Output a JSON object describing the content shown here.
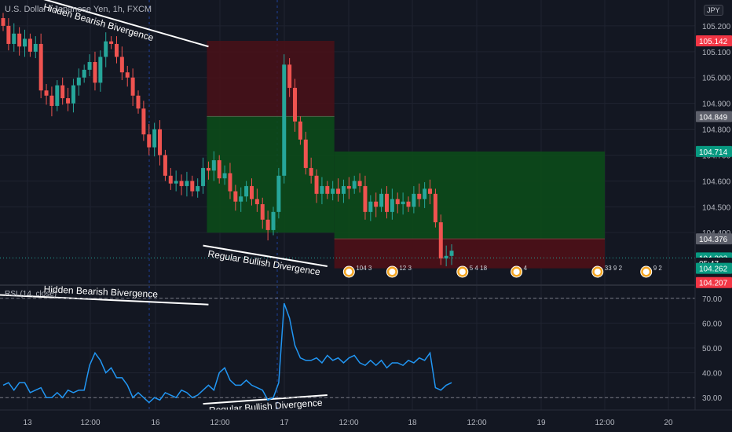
{
  "header": {
    "symbol_title": "U.S. Dollar / Japanese Yen, 1h, FXCM",
    "currency": "JPY",
    "rsi_legend": "RSI (14, close)"
  },
  "colors": {
    "bg": "#131722",
    "grid": "#1f2330",
    "up": "#26a69a",
    "down": "#ef5350",
    "rsi_line": "#2196f3",
    "profit_zone": "#0c4a1a",
    "loss_zone": "#4a1018",
    "line_white": "#ffffff"
  },
  "chart_data": [
    {
      "type": "candlestick",
      "ylim": [
        104.2,
        105.3
      ],
      "y_ticks": [
        105.2,
        105.1,
        105.0,
        104.9,
        104.8,
        104.7,
        104.6,
        104.5,
        104.4
      ],
      "x_ticks": [
        "13",
        "12:00",
        "16",
        "12:00",
        "17",
        "12:00",
        "18",
        "12:00",
        "19",
        "12:00",
        "20"
      ],
      "closes": [
        105.2,
        105.13,
        105.17,
        105.12,
        105.15,
        105.1,
        105.13,
        104.95,
        104.93,
        104.89,
        104.97,
        104.92,
        104.9,
        104.97,
        105.0,
        105.03,
        105.06,
        104.98,
        105.08,
        105.14,
        105.13,
        105.08,
        105.02,
        105.0,
        104.93,
        104.88,
        104.78,
        104.73,
        104.8,
        104.7,
        104.62,
        104.59,
        104.6,
        104.58,
        104.6,
        104.56,
        104.58,
        104.65,
        104.64,
        104.68,
        104.61,
        104.63,
        104.56,
        104.52,
        104.54,
        104.58,
        104.53,
        104.51,
        104.45,
        104.41,
        104.48,
        104.62,
        105.05,
        104.96,
        104.83,
        104.76,
        104.65,
        104.62,
        104.55,
        104.58,
        104.55,
        104.57,
        104.55,
        104.58,
        104.57,
        104.6,
        104.58,
        104.48,
        104.52,
        104.5,
        104.55,
        104.48,
        104.53,
        104.51,
        104.52,
        104.5,
        104.55,
        104.53,
        104.57,
        104.55,
        104.44,
        104.3,
        104.31,
        104.33
      ],
      "annotations": [
        {
          "text": "Hidden Bearish Bivergence",
          "from": [
            -2,
            105.36
          ],
          "to": [
            38,
            105.12
          ]
        },
        {
          "text": "Regular Bullish Divergence",
          "from": [
            37,
            104.35
          ],
          "to": [
            60,
            104.27
          ]
        }
      ],
      "position_1": {
        "entry": 104.849,
        "stop": 105.142,
        "target": 104.4
      },
      "position_2": {
        "entry": 104.376,
        "stop": 104.262,
        "target": 104.714
      },
      "price_labels": [
        {
          "value": "105.142",
          "price": 105.142,
          "color": "#f23645"
        },
        {
          "value": "104.849",
          "price": 104.849,
          "color": "#5d606b"
        },
        {
          "value": "104.714",
          "price": 104.714,
          "color": "#089981"
        },
        {
          "value": "104.376",
          "price": 104.376,
          "color": "#5d606b"
        },
        {
          "value": "104.302",
          "price": 104.302,
          "color": "#089981"
        },
        {
          "value": "05:47",
          "price": 104.282,
          "color": "#131722"
        },
        {
          "value": "104.262",
          "price": 104.262,
          "color": "#089981"
        },
        {
          "value": "104.207",
          "price": 104.207,
          "color": "#f23645"
        }
      ],
      "event_badges": [
        {
          "x": 64,
          "label": "104 3"
        },
        {
          "x": 72,
          "label": "12 3"
        },
        {
          "x": 85,
          "label": "5 4 18"
        },
        {
          "x": 95,
          "label": "4"
        },
        {
          "x": 110,
          "label": "33 9 2"
        },
        {
          "x": 119,
          "label": "9 2"
        }
      ]
    },
    {
      "type": "line",
      "name": "RSI (14, close)",
      "ylim": [
        25,
        75
      ],
      "y_ticks": [
        70.0,
        60.0,
        50.0,
        40.0,
        30.0
      ],
      "levels": [
        70,
        30
      ],
      "values": [
        35,
        36,
        33,
        36,
        36,
        32,
        33,
        34,
        30,
        30,
        32,
        30,
        33,
        32,
        33,
        33,
        43,
        48,
        45,
        40,
        42,
        38,
        38,
        35,
        30,
        32,
        30,
        28,
        30,
        29,
        32,
        31,
        30,
        33,
        32,
        30,
        31,
        33,
        35,
        33,
        40,
        42,
        37,
        35,
        35,
        37,
        35,
        34,
        33,
        29,
        30,
        36,
        68,
        62,
        51,
        46,
        45,
        45,
        46,
        44,
        47,
        45,
        46,
        44,
        46,
        47,
        44,
        43,
        45,
        43,
        45,
        42,
        44,
        44,
        43,
        45,
        44,
        46,
        45,
        48,
        34,
        33,
        35,
        36
      ],
      "annotations": [
        {
          "text": "Hidden Bearish Bivergence",
          "from": [
            -2,
            71.5
          ],
          "to": [
            38,
            67.5
          ]
        },
        {
          "text": "Regular Bullish Divergence",
          "from": [
            37,
            27.5
          ],
          "to": [
            60,
            31
          ]
        }
      ]
    }
  ]
}
